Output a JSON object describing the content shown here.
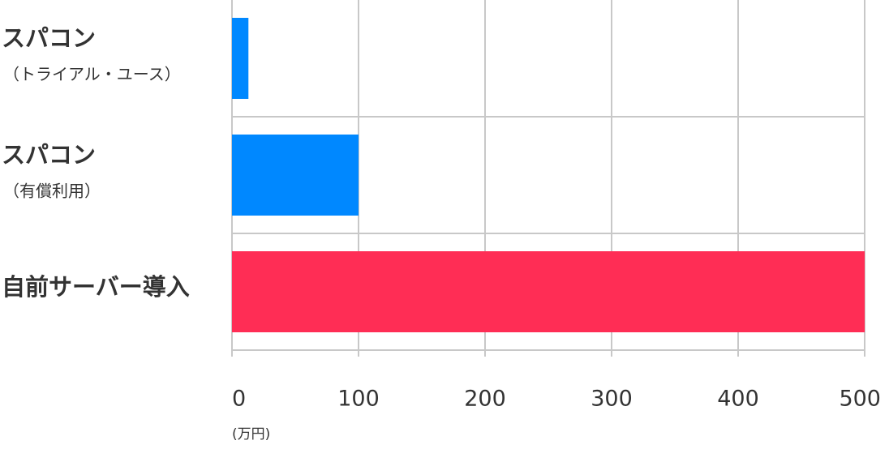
{
  "chart_data": {
    "type": "bar",
    "orientation": "horizontal",
    "categories": [
      "スパコン",
      "スパコン",
      "自前サーバー導入"
    ],
    "category_notes": [
      "（トライアル・ユース）",
      "（有償利用）",
      null
    ],
    "values": [
      13,
      100,
      500
    ],
    "colors": [
      "#0088ff",
      "#0088ff",
      "#ff2d55"
    ],
    "xlim": [
      0,
      500
    ],
    "xticks": [
      0,
      100,
      200,
      300,
      400,
      500
    ],
    "x_unit": "(万円)",
    "grid": true
  }
}
